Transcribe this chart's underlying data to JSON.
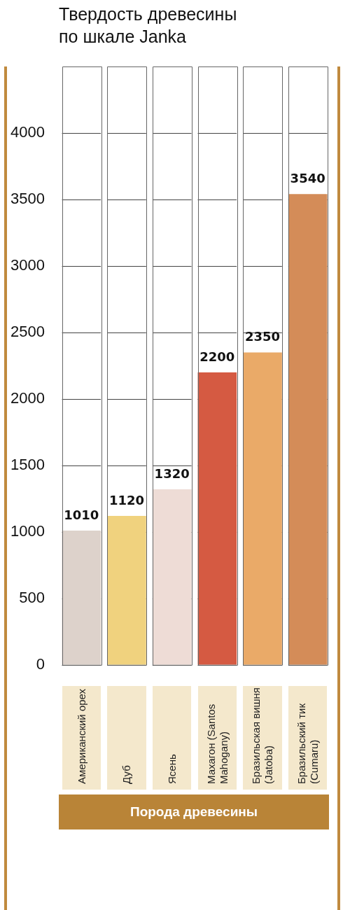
{
  "chart_data": {
    "type": "bar",
    "title": "Твердость древесины по шкале Janka",
    "xlabel": "Порода древесины",
    "categories": [
      "Американский орех",
      "Дуб",
      "Ясень",
      "Махагон (Santos Mahogany)",
      "Бразильская вишня (Jatoba)",
      "Бразильский тик (Cumaru)"
    ],
    "values": [
      1010,
      1120,
      1320,
      2200,
      2350,
      3540
    ],
    "colors": [
      "#ddd2cb",
      "#f0d27e",
      "#eedcd6",
      "#d55a42",
      "#eaaa68",
      "#d48c58"
    ],
    "ylim": [
      0,
      4500
    ],
    "yticks": [
      0,
      500,
      1000,
      1500,
      2000,
      2500,
      3000,
      3500,
      4000
    ],
    "grid": true,
    "data_labels": true,
    "legend": false
  }
}
